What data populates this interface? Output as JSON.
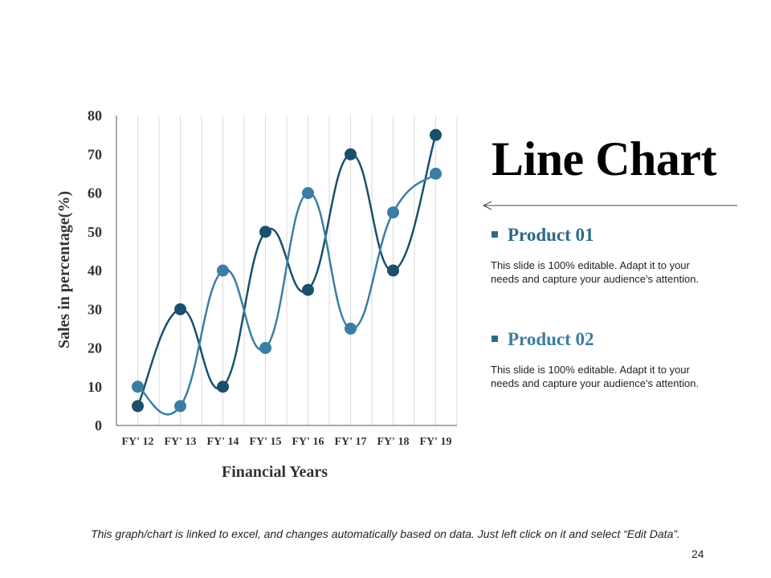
{
  "slide": {
    "title": "Line Chart",
    "products": [
      {
        "name": "Product 01",
        "color": "#2c6a8a",
        "description": "This slide is 100% editable. Adapt it to your needs and capture your audience's attention."
      },
      {
        "name": "Product 02",
        "color": "#3c7ea0",
        "description": "This slide is 100% editable. Adapt it to your needs and capture your audience's attention."
      }
    ],
    "footnote": "This graph/chart is linked to excel, and changes automatically based on data. Just left click on it and select “Edit Data”.",
    "page_number": "24"
  },
  "chart_data": {
    "type": "line",
    "title": "",
    "xlabel": "Financial Years",
    "ylabel": "Sales in percentage(%)",
    "categories": [
      "FY' 12",
      "FY' 13",
      "FY' 14",
      "FY' 15",
      "FY' 16",
      "FY' 17",
      "FY' 18",
      "FY' 19"
    ],
    "ylim": [
      0,
      80
    ],
    "yticks": [
      0,
      10,
      20,
      30,
      40,
      50,
      60,
      70,
      80
    ],
    "grid": "vertical",
    "smooth": true,
    "series": [
      {
        "color": "#1b4f6b",
        "values": [
          5,
          30,
          10,
          50,
          35,
          70,
          40,
          75
        ]
      },
      {
        "color": "#3a7ea3",
        "values": [
          10,
          5,
          40,
          20,
          60,
          25,
          55,
          65
        ]
      }
    ]
  }
}
